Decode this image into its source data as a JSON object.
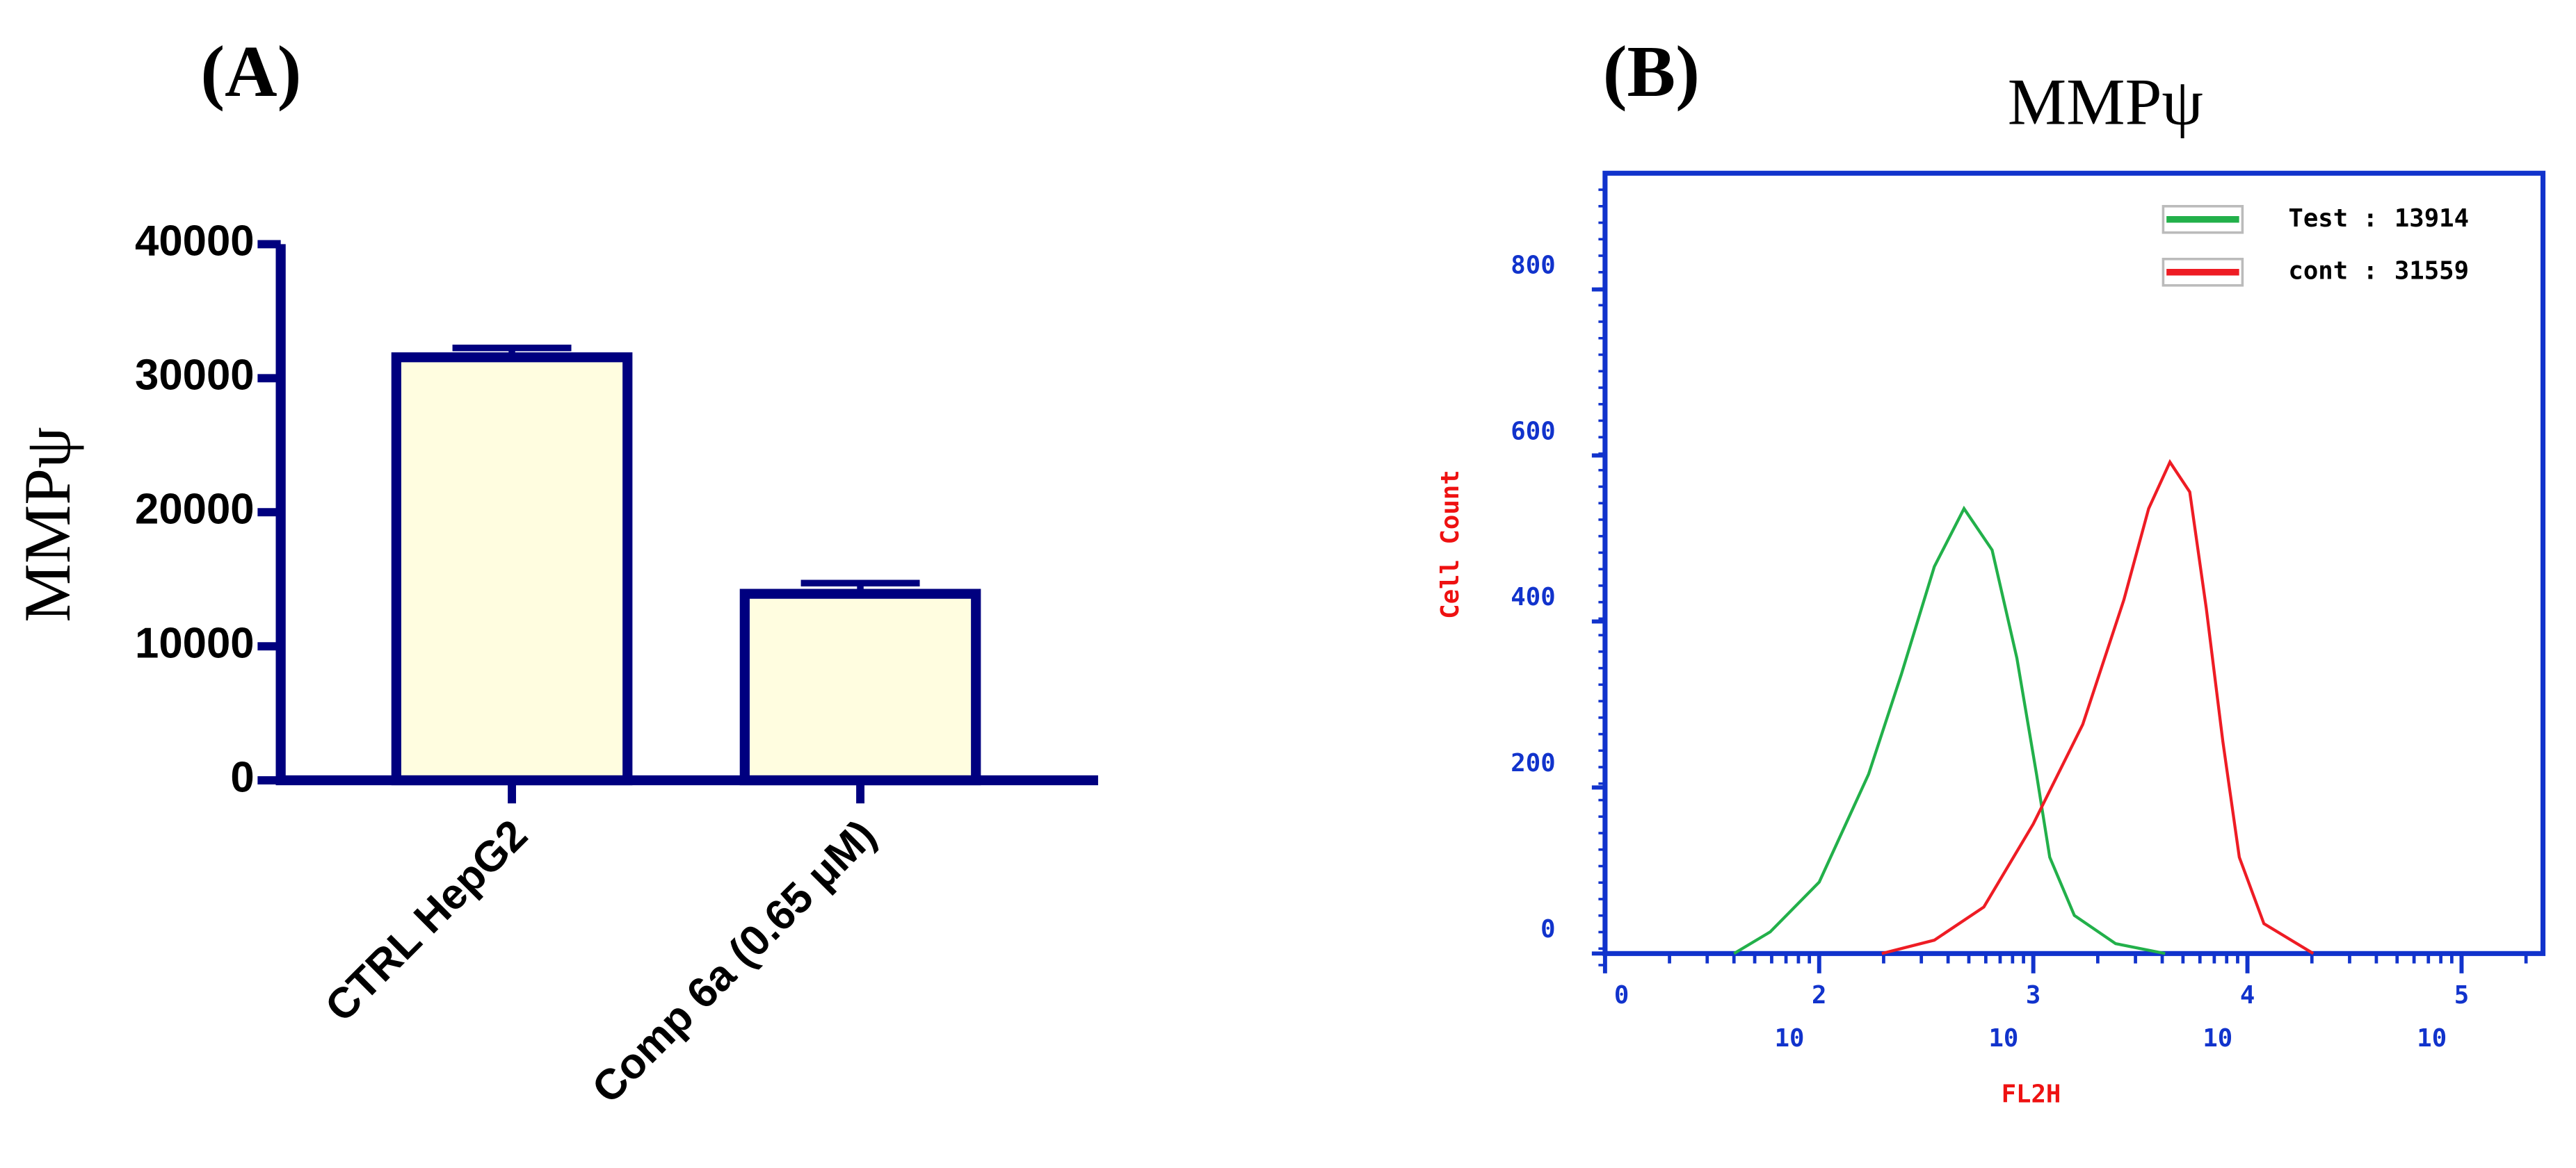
{
  "chart_data": [
    {
      "type": "bar",
      "panel": "(A)",
      "ylabel": "MMPψ",
      "categories": [
        "CTRL HepG2",
        "Comp 6a (0.65 μM)"
      ],
      "values": [
        31559,
        13914
      ],
      "errors": [
        700,
        800
      ],
      "color": "#fffde0",
      "edge_color": "#00007f",
      "ylim": [
        0,
        40000
      ],
      "yticks": [
        0,
        10000,
        20000,
        30000,
        40000
      ]
    },
    {
      "type": "line",
      "panel": "(B)",
      "title": "MMPψ",
      "xlabel": "FL2H",
      "ylabel": "Cell Count",
      "xscale": "log",
      "xlim": [
        10,
        240000
      ],
      "xticks": [
        {
          "value": 10,
          "label": "0"
        },
        {
          "value": 100,
          "label": "10",
          "exponent": "2"
        },
        {
          "value": 1000,
          "label": "10",
          "exponent": "3"
        },
        {
          "value": 10000,
          "label": "10",
          "exponent": "4"
        },
        {
          "value": 100000,
          "label": "10",
          "exponent": "5"
        }
      ],
      "ylim": [
        0,
        940
      ],
      "yticks": [
        0,
        200,
        400,
        600,
        800
      ],
      "legend": "upper right",
      "axis_color": "#1133cc",
      "label_color": "#ee1111",
      "series": [
        {
          "name": "Test :",
          "mean": 13914,
          "color": "#22b04a",
          "x": [
            40,
            59,
            100,
            170,
            242,
            345,
            475,
            642,
            838,
            1036,
            1194,
            1556,
            2425,
            4125
          ],
          "values": [
            0,
            26,
            86,
            216,
            336,
            466,
            536,
            486,
            356,
            216,
            116,
            46,
            12,
            0
          ]
        },
        {
          "name": "cont :",
          "mean": 31559,
          "color": "#ee1c24",
          "x": [
            196,
            345,
            588,
            1000,
            1701,
            2648,
            3455,
            4345,
            5380,
            6424,
            7670,
            9155,
            11940,
            20300
          ],
          "values": [
            0,
            16,
            56,
            156,
            276,
            426,
            536,
            592,
            556,
            416,
            256,
            116,
            36,
            0
          ]
        }
      ]
    }
  ]
}
